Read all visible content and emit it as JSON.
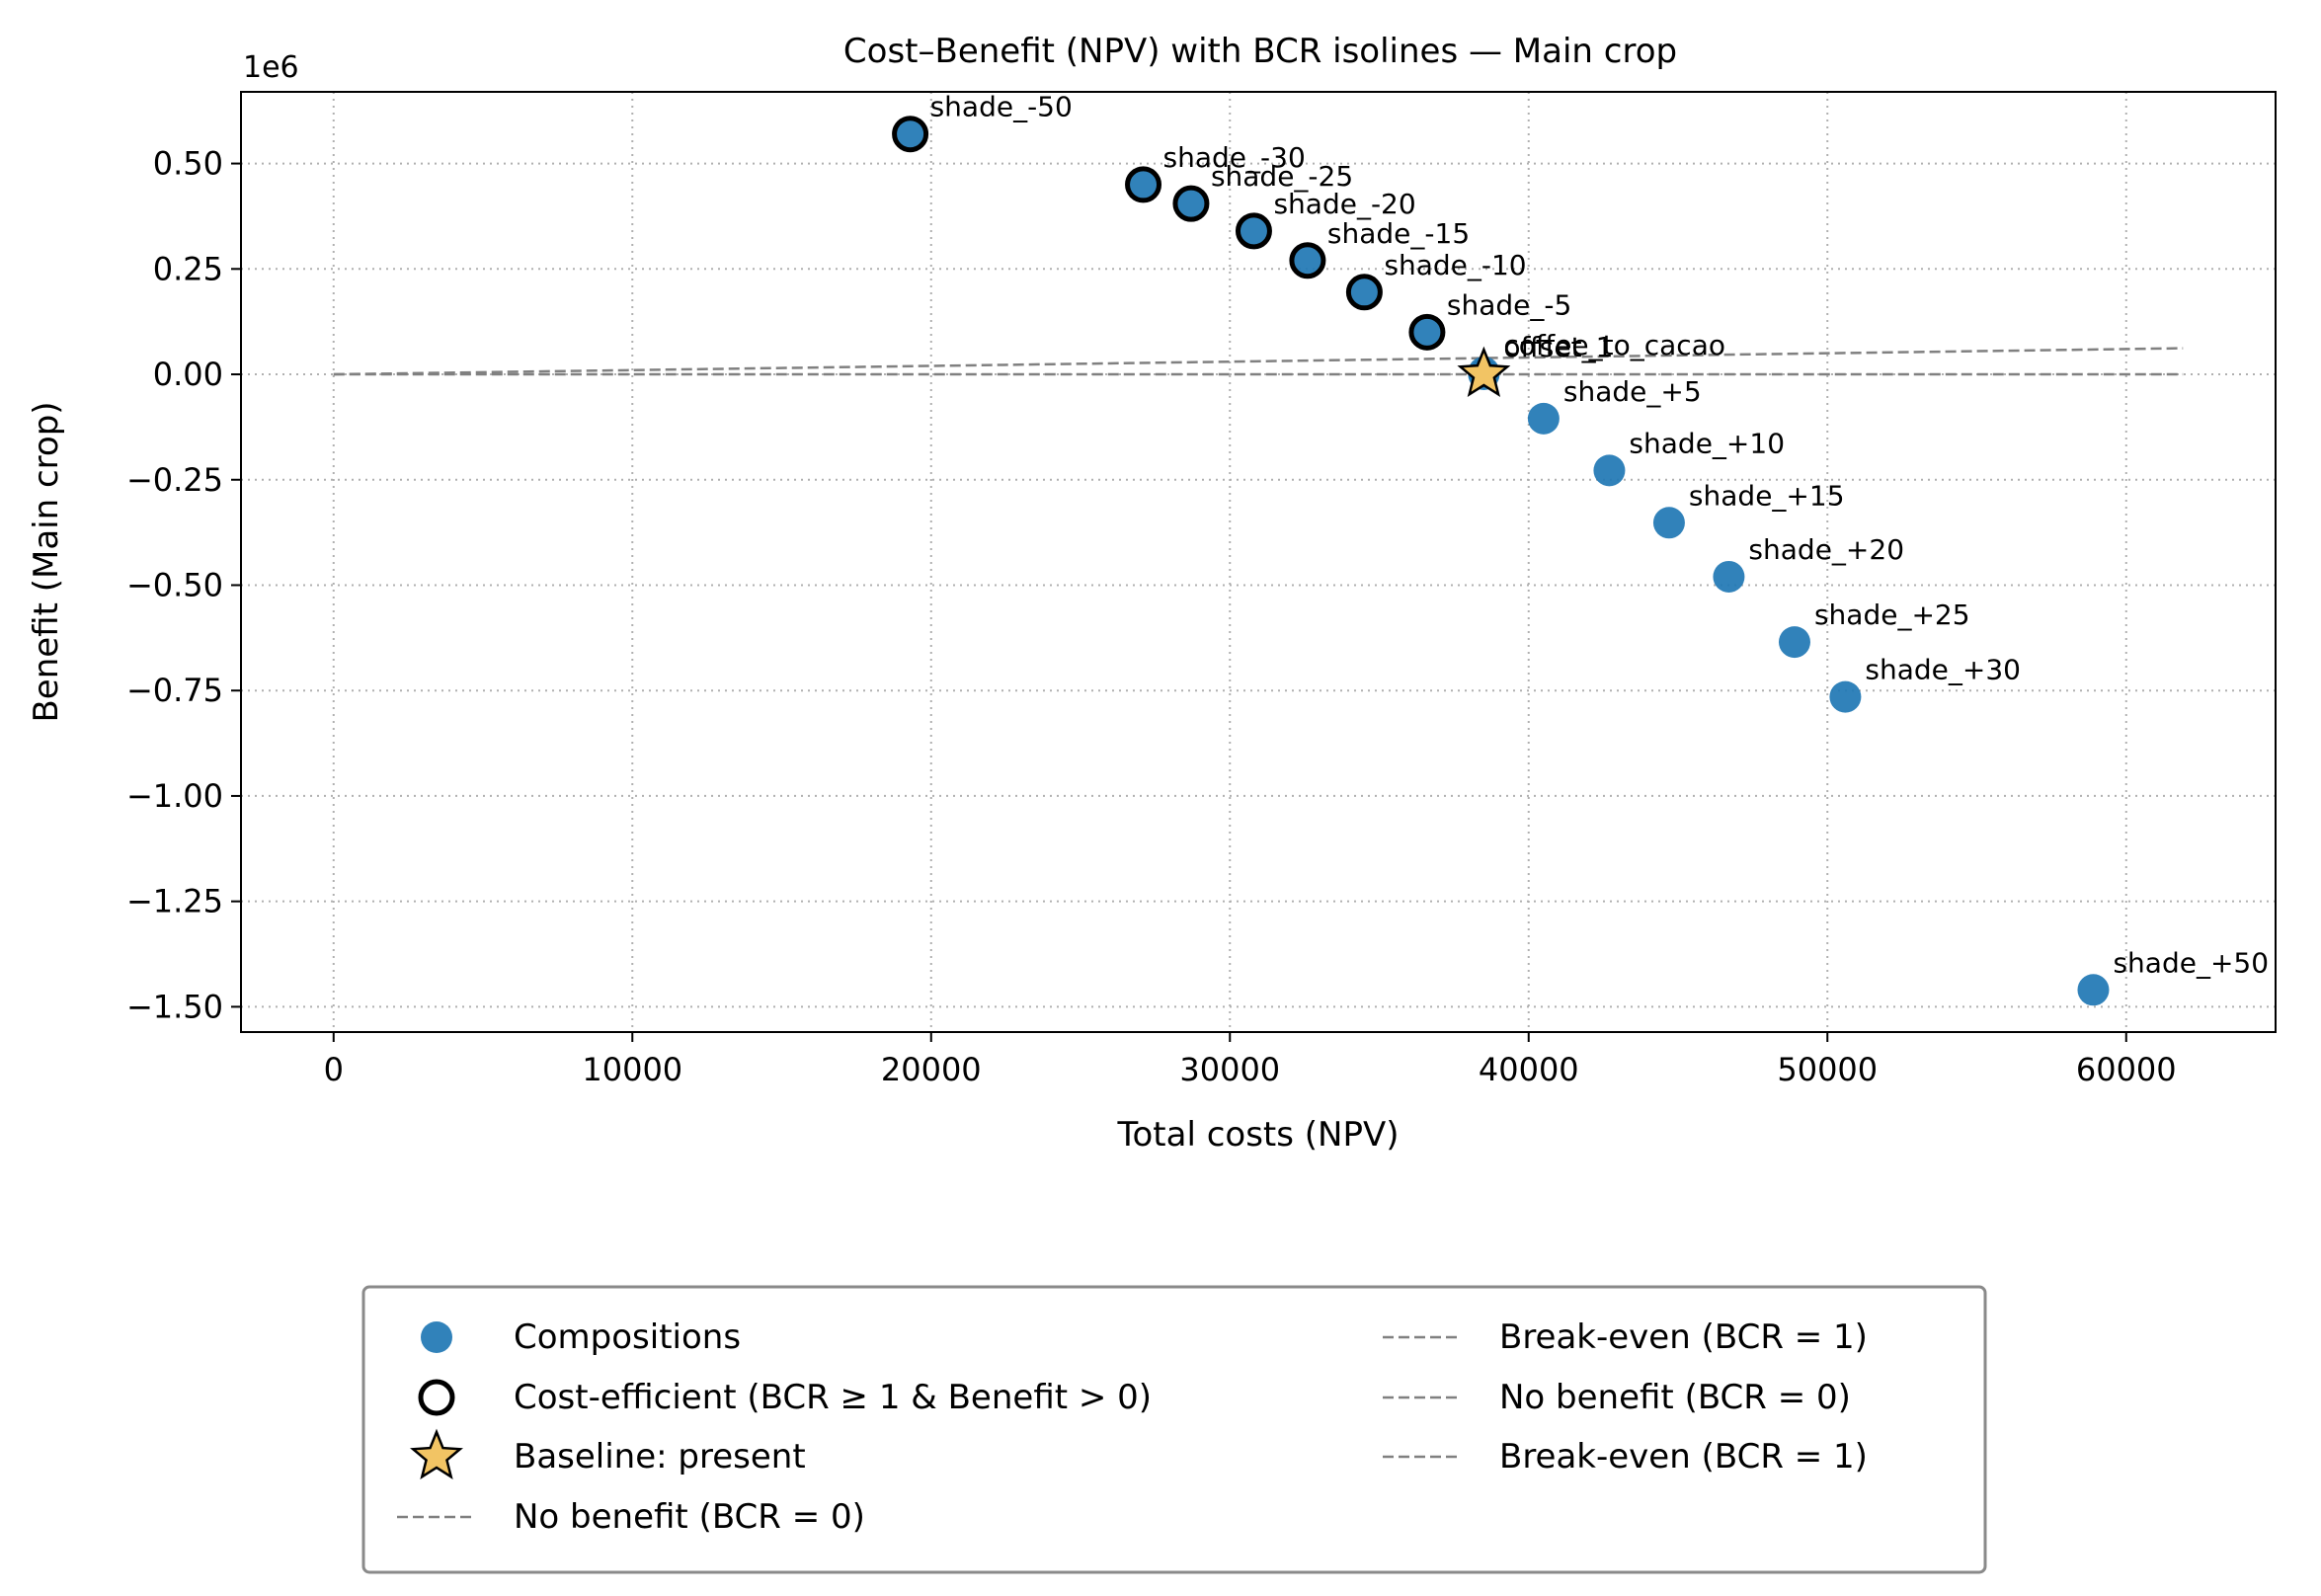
{
  "chart_data": {
    "type": "scatter",
    "title": "Cost–Benefit (NPV) with BCR isolines — Main crop",
    "xlabel": "Total costs (NPV)",
    "ylabel": "Benefit (Main crop)",
    "y_offset_label": "1e6",
    "xlim": [
      -3100,
      65000
    ],
    "ylim": [
      -1.56,
      0.67
    ],
    "xticks": [
      0,
      10000,
      20000,
      30000,
      40000,
      50000,
      60000
    ],
    "xtick_labels": [
      "0",
      "10000",
      "20000",
      "30000",
      "40000",
      "50000",
      "60000"
    ],
    "yticks": [
      0.5,
      0.25,
      0.0,
      -0.25,
      -0.5,
      -0.75,
      -1.0,
      -1.25,
      -1.5
    ],
    "ytick_labels": [
      "0.50",
      "0.25",
      "0.00",
      "−0.25",
      "−0.50",
      "−0.75",
      "−1.00",
      "−1.25",
      "−1.50"
    ],
    "grid": true,
    "legend_position": "bottom-center-outside",
    "colors": {
      "composition": "#1f77b4",
      "baseline": "#f2c464",
      "isoline": "#808080",
      "edge": "#000000"
    },
    "points": [
      {
        "label": "shade_-50",
        "x": 19300,
        "y": 0.57,
        "efficient": true
      },
      {
        "label": "shade_-30",
        "x": 27100,
        "y": 0.45,
        "efficient": true
      },
      {
        "label": "shade_-25",
        "x": 28700,
        "y": 0.405,
        "efficient": true
      },
      {
        "label": "shade_-20",
        "x": 30800,
        "y": 0.34,
        "efficient": true
      },
      {
        "label": "shade_-15",
        "x": 32600,
        "y": 0.27,
        "efficient": true
      },
      {
        "label": "shade_-10",
        "x": 34500,
        "y": 0.195,
        "efficient": true
      },
      {
        "label": "shade_-5",
        "x": 36600,
        "y": 0.1,
        "efficient": true
      },
      {
        "label": "coffee_to_cacao",
        "x": 38500,
        "y": 0.005,
        "efficient": false
      },
      {
        "label": "offset_1",
        "x": 38500,
        "y": 0.0,
        "efficient": false
      },
      {
        "label": "shade_+5",
        "x": 40500,
        "y": -0.105,
        "efficient": false
      },
      {
        "label": "shade_+10",
        "x": 42700,
        "y": -0.228,
        "efficient": false
      },
      {
        "label": "shade_+15",
        "x": 44700,
        "y": -0.352,
        "efficient": false
      },
      {
        "label": "shade_+20",
        "x": 46700,
        "y": -0.48,
        "efficient": false
      },
      {
        "label": "shade_+25",
        "x": 48900,
        "y": -0.635,
        "efficient": false
      },
      {
        "label": "shade_+30",
        "x": 50600,
        "y": -0.765,
        "efficient": false
      },
      {
        "label": "shade_+50",
        "x": 58900,
        "y": -1.46,
        "efficient": false
      }
    ],
    "baseline": {
      "label": "present",
      "x": 38500,
      "y": 0.0
    },
    "isolines": [
      {
        "name": "Break-even (BCR = 1)",
        "x": [
          0,
          61900
        ],
        "y": [
          0,
          0.0619
        ]
      },
      {
        "name": "No benefit (BCR = 0)",
        "x": [
          0,
          61900
        ],
        "y": [
          0,
          0.0
        ]
      }
    ],
    "legend": {
      "left": [
        {
          "kind": "composition",
          "label": "Compositions"
        },
        {
          "kind": "efficient",
          "label": "Cost-efficient (BCR ≥ 1 & Benefit > 0)"
        },
        {
          "kind": "baseline",
          "label": "Baseline: present"
        },
        {
          "kind": "dashed",
          "label": "No benefit (BCR = 0)"
        }
      ],
      "right": [
        {
          "kind": "dashed",
          "label": "Break-even (BCR = 1)"
        },
        {
          "kind": "dashed",
          "label": "No benefit (BCR = 0)"
        },
        {
          "kind": "dashed",
          "label": "Break-even (BCR = 1)"
        }
      ]
    }
  }
}
